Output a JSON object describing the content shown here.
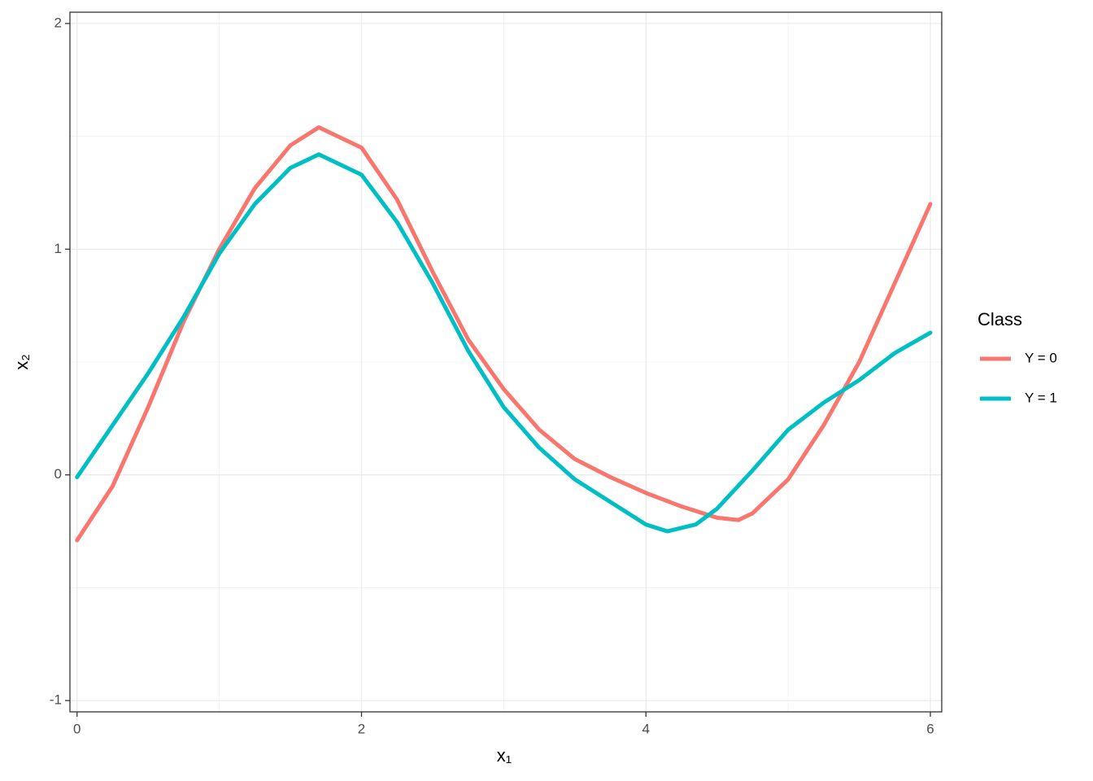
{
  "chart_data": {
    "type": "line",
    "xlabel": "x₁",
    "ylabel": "x₂",
    "legend_title": "Class",
    "legend_position": "right",
    "xlim": [
      -0.05,
      6.08
    ],
    "ylim": [
      -1.05,
      2.05
    ],
    "xticks": [
      0,
      2,
      4,
      6
    ],
    "yticks": [
      -1,
      0,
      1,
      2
    ],
    "grid": true,
    "series": [
      {
        "name": "Y = 0",
        "color": "#f8766d",
        "x": [
          0,
          0.25,
          0.5,
          0.75,
          1.0,
          1.25,
          1.5,
          1.7,
          2.0,
          2.25,
          2.5,
          2.75,
          3.0,
          3.25,
          3.5,
          3.75,
          4.0,
          4.25,
          4.5,
          4.65,
          4.75,
          5.0,
          5.25,
          5.5,
          5.75,
          6.0
        ],
        "values": [
          -0.29,
          -0.05,
          0.3,
          0.68,
          1.0,
          1.27,
          1.46,
          1.54,
          1.45,
          1.22,
          0.9,
          0.6,
          0.38,
          0.2,
          0.07,
          -0.01,
          -0.08,
          -0.14,
          -0.19,
          -0.2,
          -0.17,
          -0.02,
          0.22,
          0.5,
          0.85,
          1.2
        ]
      },
      {
        "name": "Y = 1",
        "color": "#00bfc4",
        "x": [
          0,
          0.25,
          0.5,
          0.75,
          1.0,
          1.25,
          1.5,
          1.7,
          2.0,
          2.25,
          2.5,
          2.75,
          3.0,
          3.25,
          3.5,
          3.75,
          4.0,
          4.15,
          4.35,
          4.5,
          4.75,
          5.0,
          5.25,
          5.5,
          5.75,
          6.0
        ],
        "values": [
          -0.01,
          0.22,
          0.45,
          0.7,
          0.98,
          1.2,
          1.36,
          1.42,
          1.33,
          1.12,
          0.85,
          0.55,
          0.3,
          0.12,
          -0.02,
          -0.12,
          -0.22,
          -0.25,
          -0.22,
          -0.15,
          0.02,
          0.2,
          0.32,
          0.42,
          0.54,
          0.63
        ]
      }
    ]
  }
}
